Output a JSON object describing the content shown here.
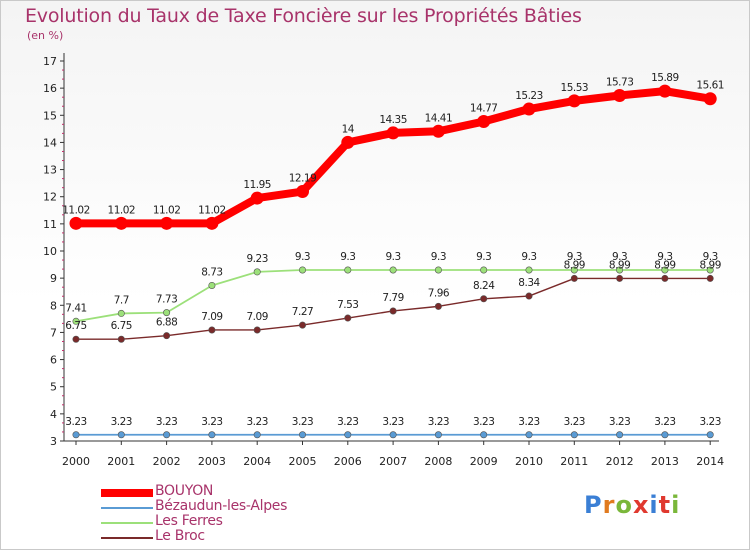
{
  "header": {
    "title": "Evolution du Taux de Taxe Foncière sur les Propriétés Bâties",
    "unit": "(en %)"
  },
  "logo": {
    "letters": [
      "P",
      "r",
      "o",
      "x",
      "i",
      "t",
      "i"
    ],
    "colors": [
      "#3a7fd5",
      "#e07a1f",
      "#7ab73a",
      "#e0392f",
      "#3a7fd5",
      "#e0392f",
      "#7ab73a"
    ]
  },
  "chart_data": {
    "type": "line",
    "title": "Evolution du Taux de Taxe Foncière sur les Propriétés Bâties",
    "ylabel": "(en %)",
    "xlabel": "",
    "ylim": [
      3,
      17
    ],
    "y_ticks": [
      "3",
      "4",
      "5",
      "6",
      "7",
      "8",
      "9",
      "10",
      "11",
      "12",
      "13",
      "14",
      "15",
      "16",
      "17"
    ],
    "categories": [
      "2000",
      "2001",
      "2002",
      "2003",
      "2004",
      "2005",
      "2006",
      "2007",
      "2008",
      "2009",
      "2010",
      "2011",
      "2012",
      "2013",
      "2014"
    ],
    "grid": false,
    "legend_position": "bottom-left",
    "series": [
      {
        "name": "BOUYON",
        "color": "#ff0000",
        "values": [
          11.02,
          11.02,
          11.02,
          11.02,
          11.95,
          12.19,
          14,
          14.35,
          14.41,
          14.77,
          15.23,
          15.53,
          15.73,
          15.89,
          15.61
        ],
        "labels": [
          "11.02",
          "11.02",
          "11.02",
          "11.02",
          "11.95",
          "12.19",
          "14",
          "14.35",
          "14.41",
          "14.77",
          "15.23",
          "15.53",
          "15.73",
          "15.89",
          "15.61"
        ]
      },
      {
        "name": "Bézaudun-les-Alpes",
        "color": "#5a9bd4",
        "values": [
          3.23,
          3.23,
          3.23,
          3.23,
          3.23,
          3.23,
          3.23,
          3.23,
          3.23,
          3.23,
          3.23,
          3.23,
          3.23,
          3.23,
          3.23
        ],
        "labels": [
          "3.23",
          "3.23",
          "3.23",
          "3.23",
          "3.23",
          "3.23",
          "3.23",
          "3.23",
          "3.23",
          "3.23",
          "3.23",
          "3.23",
          "3.23",
          "3.23",
          "3.23"
        ]
      },
      {
        "name": "Les Ferres",
        "color": "#9ce07a",
        "values": [
          7.41,
          7.7,
          7.73,
          8.73,
          9.23,
          9.3,
          9.3,
          9.3,
          9.3,
          9.3,
          9.3,
          9.3,
          9.3,
          9.3,
          9.3
        ],
        "labels": [
          "7.41",
          "7.7",
          "7.73",
          "8.73",
          "9.23",
          "9.3",
          "9.3",
          "9.3",
          "9.3",
          "9.3",
          "9.3",
          "9.3",
          "9.3",
          "9.3",
          "9.3"
        ]
      },
      {
        "name": "Le Broc",
        "color": "#7a2a2a",
        "values": [
          6.75,
          6.75,
          6.88,
          7.09,
          7.09,
          7.27,
          7.53,
          7.79,
          7.96,
          8.24,
          8.34,
          8.99,
          8.99,
          8.99,
          8.99
        ],
        "labels": [
          "6.75",
          "6.75",
          "6.88",
          "7.09",
          "7.09",
          "7.27",
          "7.53",
          "7.79",
          "7.96",
          "8.24",
          "8.34",
          "8.99",
          "8.99",
          "8.99",
          "8.99"
        ]
      }
    ]
  }
}
